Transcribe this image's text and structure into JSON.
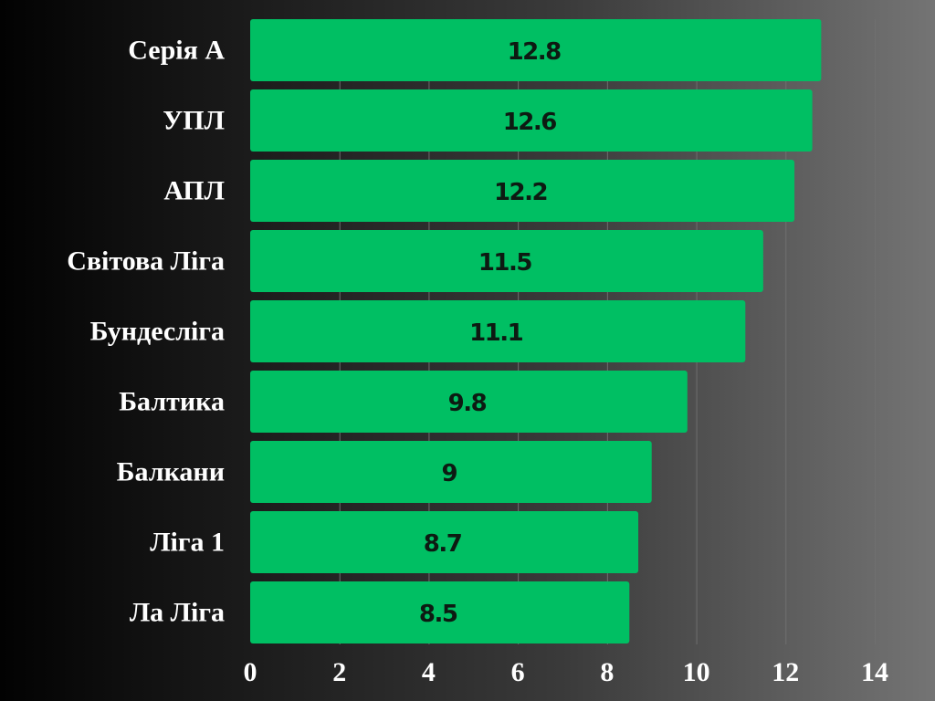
{
  "chart_data": {
    "type": "bar",
    "orientation": "horizontal",
    "categories": [
      "Серія А",
      "УПЛ",
      "АПЛ",
      "Світова Ліга",
      "Бундесліга",
      "Балтика",
      "Балкани",
      "Ліга 1",
      "Ла Ліга"
    ],
    "values": [
      12.8,
      12.6,
      12.2,
      11.5,
      11.1,
      9.8,
      9,
      8.7,
      8.5
    ],
    "value_labels": [
      "12.8",
      "12.6",
      "12.2",
      "11.5",
      "11.1",
      "9.8",
      "9",
      "8.7",
      "8.5"
    ],
    "x_ticks": [
      "0",
      "2",
      "4",
      "6",
      "8",
      "10",
      "12",
      "14"
    ],
    "xlim": [
      0,
      14
    ],
    "title": "",
    "xlabel": "",
    "ylabel": "",
    "grid": true,
    "legend": false,
    "bar_color": "#00bf63"
  }
}
